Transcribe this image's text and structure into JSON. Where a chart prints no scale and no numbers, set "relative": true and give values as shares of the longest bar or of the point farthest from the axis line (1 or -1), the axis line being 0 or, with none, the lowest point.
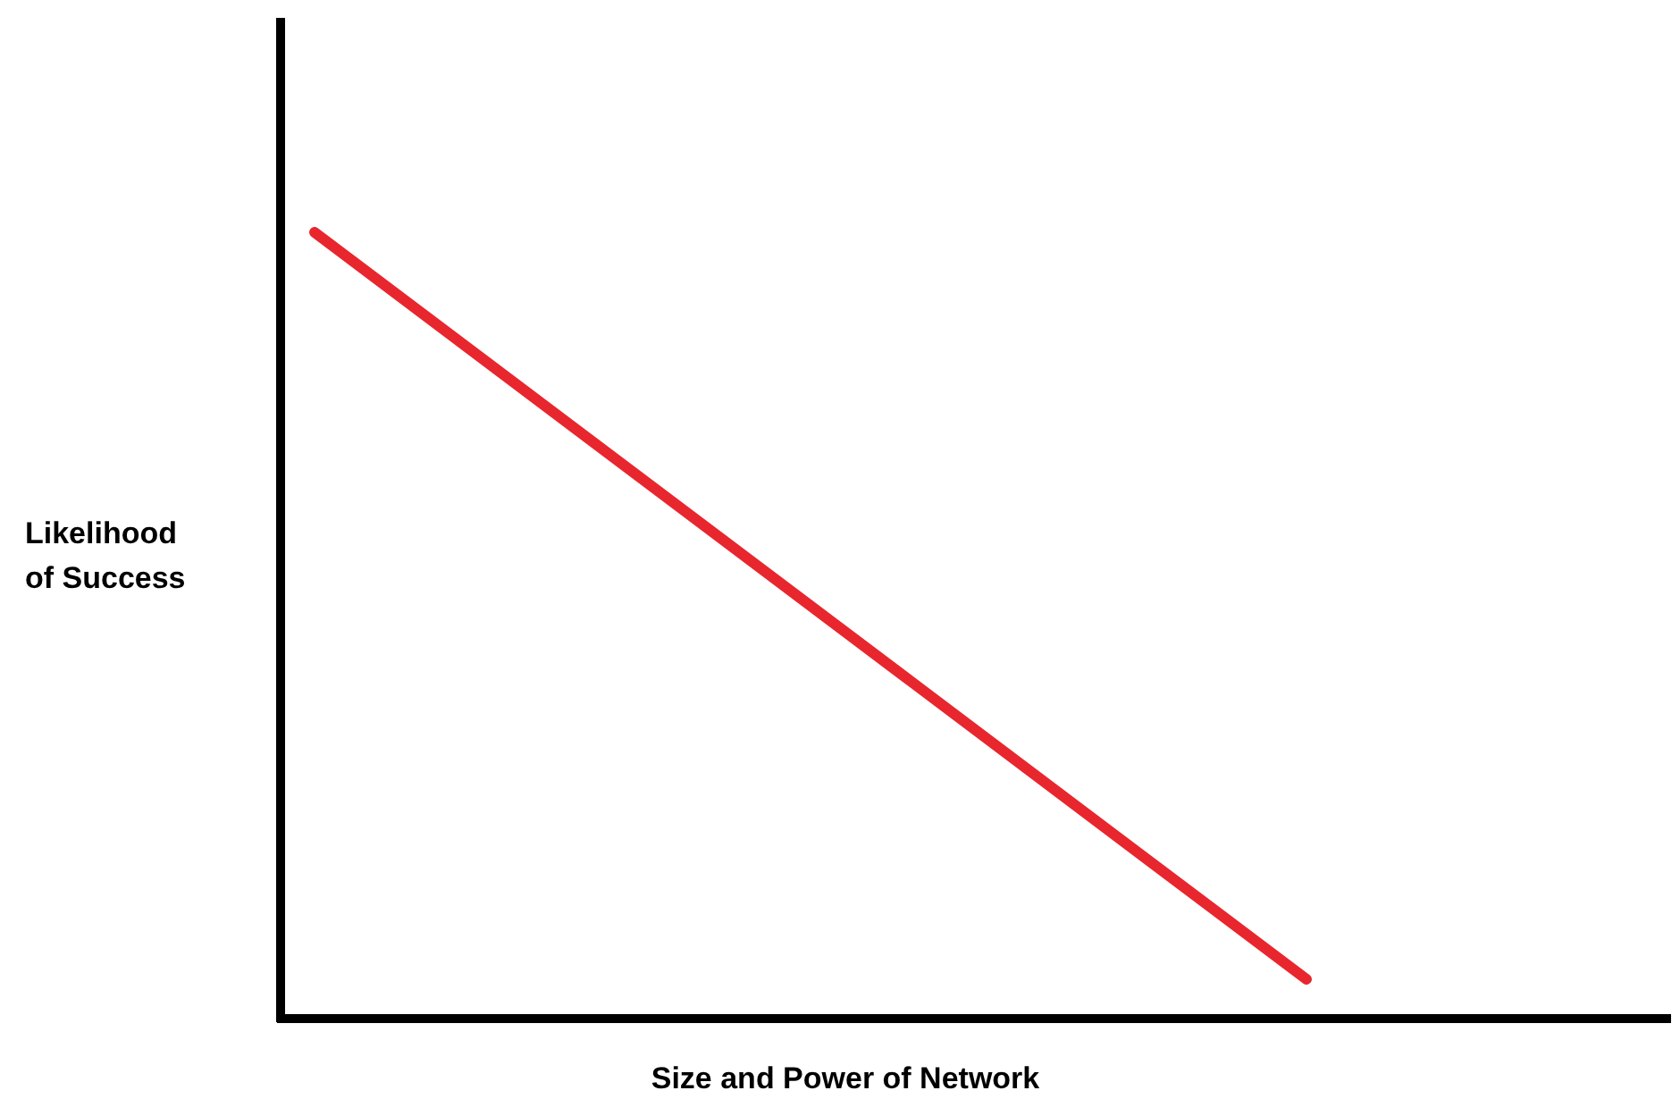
{
  "chart_data": {
    "type": "line",
    "relative": true,
    "xlabel": "Size and Power of Network",
    "ylabel": "Likelihood of Success",
    "categories": [
      null,
      null
    ],
    "series": [
      {
        "color": "#e8262e",
        "values": [
          1,
          0.05
        ]
      }
    ],
    "marker": "none",
    "line_style": "solid"
  }
}
